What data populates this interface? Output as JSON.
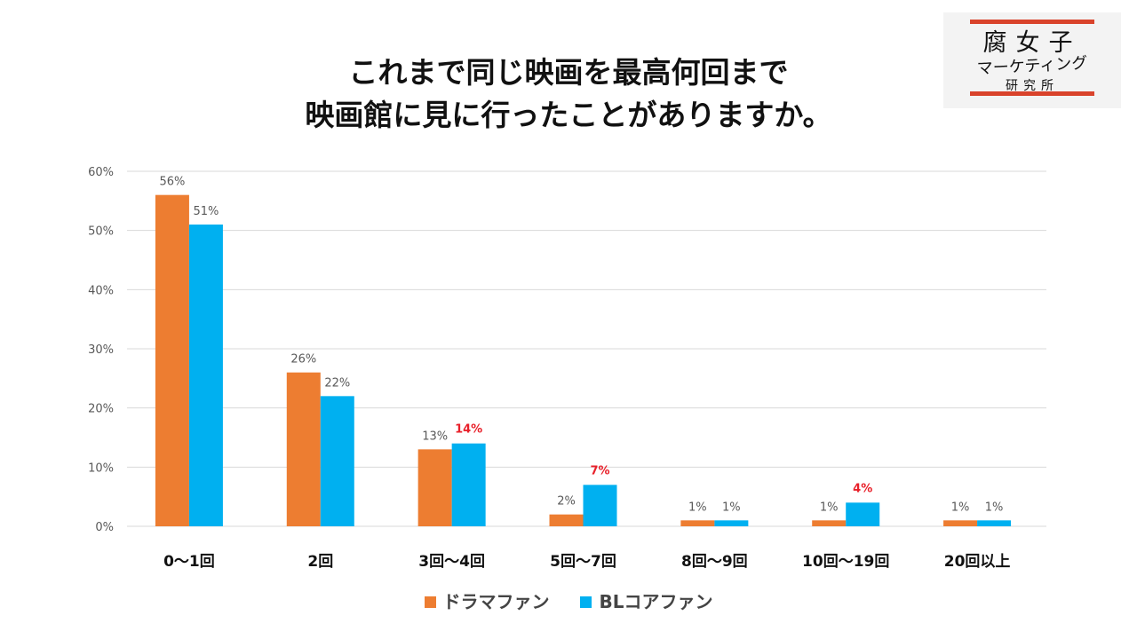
{
  "title": {
    "line1": "これまで同じ映画を最高何回まで",
    "line2": "映画館に見に行ったことがありますか。"
  },
  "logo": {
    "line1": "腐女子",
    "line2": "マーケティング",
    "line3": "研究所"
  },
  "colors": {
    "drama": "#ed7d31",
    "bl": "#00b0f0",
    "highlight": "#e8202a",
    "grid": "#d9d9d9"
  },
  "chart_data": {
    "type": "bar",
    "categories": [
      "0〜1回",
      "2回",
      "3回〜4回",
      "5回〜7回",
      "8回〜9回",
      "10回〜19回",
      "20回以上"
    ],
    "series": [
      {
        "name": "ドラマファン",
        "values": [
          56,
          26,
          13,
          2,
          1,
          1,
          1
        ]
      },
      {
        "name": "BLコアファン",
        "values": [
          51,
          22,
          14,
          7,
          1,
          4,
          1
        ]
      }
    ],
    "highlighted": [
      {
        "series": 1,
        "category": 2
      },
      {
        "series": 1,
        "category": 3
      },
      {
        "series": 1,
        "category": 5
      }
    ],
    "ylim": [
      0,
      60
    ],
    "yticks": [
      0,
      10,
      20,
      30,
      40,
      50,
      60
    ],
    "value_suffix": "%",
    "grid": true,
    "legend_position": "bottom"
  }
}
